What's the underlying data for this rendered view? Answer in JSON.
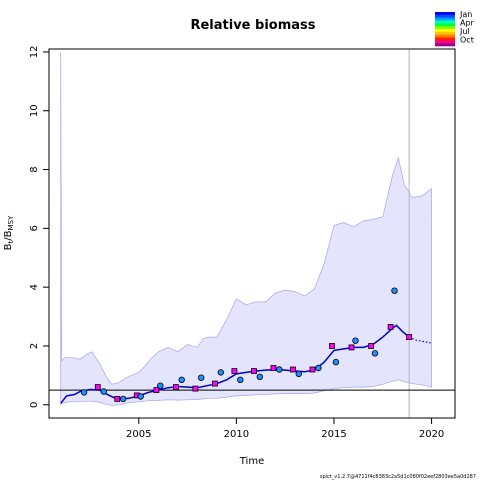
{
  "chart_data": {
    "type": "line",
    "title": "Relative biomass",
    "xlabel": "Time",
    "ylabel": {
      "base": "B",
      "sub1": "t",
      "mid": "/B",
      "sub2": "MSY"
    },
    "xlim": [
      2000.4,
      2021.2
    ],
    "ylim": [
      -0.45,
      12.1
    ],
    "x_ticks": [
      2005,
      2010,
      2015,
      2020
    ],
    "y_ticks": [
      0,
      2,
      4,
      6,
      8,
      10,
      12
    ],
    "reference_line_y": 0.5,
    "last_obs_vline_x": 2018.85,
    "confidence_band": {
      "x": [
        2001.0,
        2001.05,
        2001.2,
        2001.6,
        2002.0,
        2002.3,
        2002.6,
        2003.0,
        2003.3,
        2003.6,
        2004.0,
        2004.3,
        2004.6,
        2005.0,
        2005.3,
        2005.6,
        2006.0,
        2006.5,
        2007.0,
        2007.5,
        2008.0,
        2008.3,
        2008.6,
        2009.0,
        2009.5,
        2010.0,
        2010.5,
        2011.0,
        2011.5,
        2012.0,
        2012.5,
        2013.0,
        2013.5,
        2014.0,
        2014.5,
        2015.0,
        2015.5,
        2016.0,
        2016.5,
        2017.0,
        2017.5,
        2018.0,
        2018.3,
        2018.6,
        2019.0,
        2019.5,
        2020.0
      ],
      "upper": [
        12.0,
        1.5,
        1.6,
        1.6,
        1.55,
        1.7,
        1.8,
        1.4,
        1.0,
        0.7,
        0.75,
        0.9,
        1.0,
        1.1,
        1.3,
        1.55,
        1.8,
        1.95,
        1.8,
        2.05,
        1.95,
        2.25,
        2.3,
        2.3,
        2.9,
        3.6,
        3.4,
        3.5,
        3.5,
        3.8,
        3.9,
        3.85,
        3.7,
        3.95,
        4.8,
        6.1,
        6.2,
        6.05,
        6.25,
        6.3,
        6.4,
        7.8,
        8.4,
        7.5,
        7.05,
        7.1,
        7.35
      ],
      "lower": [
        0.0,
        0.05,
        0.08,
        0.1,
        0.1,
        0.12,
        0.12,
        0.08,
        0.02,
        -0.02,
        0.0,
        0.05,
        0.08,
        0.1,
        0.12,
        0.14,
        0.15,
        0.17,
        0.16,
        0.17,
        0.18,
        0.2,
        0.22,
        0.22,
        0.26,
        0.3,
        0.32,
        0.34,
        0.35,
        0.37,
        0.38,
        0.38,
        0.38,
        0.4,
        0.48,
        0.55,
        0.58,
        0.6,
        0.6,
        0.62,
        0.7,
        0.8,
        0.85,
        0.78,
        0.72,
        0.68,
        0.6
      ]
    },
    "estimate_line": {
      "x": [
        2001.0,
        2001.3,
        2001.7,
        2002.0,
        2002.5,
        2003.0,
        2003.3,
        2003.7,
        2004.0,
        2004.5,
        2005.0,
        2005.5,
        2006.0,
        2006.5,
        2007.0,
        2007.5,
        2008.0,
        2008.5,
        2009.0,
        2009.5,
        2010.0,
        2010.5,
        2011.0,
        2011.5,
        2012.0,
        2012.5,
        2013.0,
        2013.5,
        2014.0,
        2014.5,
        2015.0,
        2015.5,
        2016.0,
        2016.5,
        2017.0,
        2017.5,
        2018.0,
        2018.2,
        2018.5,
        2018.85
      ],
      "y": [
        0.05,
        0.3,
        0.35,
        0.45,
        0.52,
        0.5,
        0.38,
        0.25,
        0.2,
        0.22,
        0.3,
        0.42,
        0.5,
        0.58,
        0.62,
        0.6,
        0.58,
        0.65,
        0.72,
        0.85,
        1.05,
        1.1,
        1.15,
        1.18,
        1.2,
        1.18,
        1.15,
        1.12,
        1.18,
        1.45,
        1.85,
        1.9,
        1.95,
        1.95,
        2.05,
        2.3,
        2.6,
        2.7,
        2.5,
        2.3
      ]
    },
    "forecast_line": {
      "x": [
        2018.85,
        2019.2,
        2019.6,
        2020.0
      ],
      "y": [
        2.3,
        2.2,
        2.15,
        2.1
      ]
    },
    "squares": [
      {
        "x": 2002.9,
        "y": 0.6,
        "c": "#ff00ff"
      },
      {
        "x": 2003.9,
        "y": 0.2,
        "c": "#ff00ff"
      },
      {
        "x": 2004.9,
        "y": 0.32,
        "c": "#ff00ff"
      },
      {
        "x": 2005.9,
        "y": 0.5,
        "c": "#ff00ff"
      },
      {
        "x": 2006.9,
        "y": 0.6,
        "c": "#ff00ff"
      },
      {
        "x": 2007.9,
        "y": 0.55,
        "c": "#ff00ff"
      },
      {
        "x": 2008.9,
        "y": 0.72,
        "c": "#ff00ff"
      },
      {
        "x": 2009.9,
        "y": 1.15,
        "c": "#ff00ff"
      },
      {
        "x": 2010.9,
        "y": 1.15,
        "c": "#ff00ff"
      },
      {
        "x": 2011.9,
        "y": 1.25,
        "c": "#ff00ff"
      },
      {
        "x": 2012.9,
        "y": 1.2,
        "c": "#ff00ff"
      },
      {
        "x": 2013.9,
        "y": 1.2,
        "c": "#ff00ff"
      },
      {
        "x": 2014.9,
        "y": 2.0,
        "c": "#ff00ff"
      },
      {
        "x": 2015.9,
        "y": 1.95,
        "c": "#ff00ff"
      },
      {
        "x": 2016.9,
        "y": 2.0,
        "c": "#ff00ff"
      },
      {
        "x": 2017.9,
        "y": 2.65,
        "c": "#ff00ff"
      },
      {
        "x": 2018.85,
        "y": 2.3,
        "c": "#ff00ff"
      }
    ],
    "circles": [
      {
        "x": 2002.2,
        "y": 0.42,
        "c": "#1e90ff"
      },
      {
        "x": 2003.2,
        "y": 0.45,
        "c": "#1e90ff"
      },
      {
        "x": 2004.2,
        "y": 0.2,
        "c": "#1e90ff"
      },
      {
        "x": 2005.1,
        "y": 0.28,
        "c": "#1e90ff"
      },
      {
        "x": 2006.1,
        "y": 0.65,
        "c": "#1e90ff"
      },
      {
        "x": 2007.2,
        "y": 0.85,
        "c": "#1e90ff"
      },
      {
        "x": 2008.2,
        "y": 0.92,
        "c": "#1e90ff"
      },
      {
        "x": 2009.2,
        "y": 1.1,
        "c": "#1e90ff"
      },
      {
        "x": 2010.2,
        "y": 0.85,
        "c": "#1e90ff"
      },
      {
        "x": 2011.2,
        "y": 0.95,
        "c": "#1e90ff"
      },
      {
        "x": 2012.2,
        "y": 1.2,
        "c": "#1e90ff"
      },
      {
        "x": 2013.2,
        "y": 1.05,
        "c": "#1e90ff"
      },
      {
        "x": 2014.2,
        "y": 1.25,
        "c": "#1e90ff"
      },
      {
        "x": 2015.1,
        "y": 1.45,
        "c": "#1e90ff"
      },
      {
        "x": 2016.1,
        "y": 2.18,
        "c": "#1e90ff"
      },
      {
        "x": 2017.1,
        "y": 1.75,
        "c": "#1e90ff"
      },
      {
        "x": 2018.1,
        "y": 3.88,
        "c": "#1e90ff"
      }
    ],
    "legend": {
      "labels": [
        "Jan",
        "Apr",
        "Jul",
        "Oct"
      ],
      "colors": [
        "#0000ff",
        "#0050ff",
        "#00a0ff",
        "#00ffc0",
        "#00ff40",
        "#80ff00",
        "#ffff00",
        "#ffc000",
        "#ff8000",
        "#ff2000",
        "#ff0080",
        "#a00090"
      ]
    },
    "colors": {
      "band_fill": "#e4e4fd",
      "band_edge": "#a5a5f2",
      "line": "#0000cc",
      "reference": "#000000",
      "vline": "#b4b4b4"
    },
    "footer": "spict_v1.2.7@4711f4c8383c2a5d1c080f02eef2803ee5a0d287"
  }
}
